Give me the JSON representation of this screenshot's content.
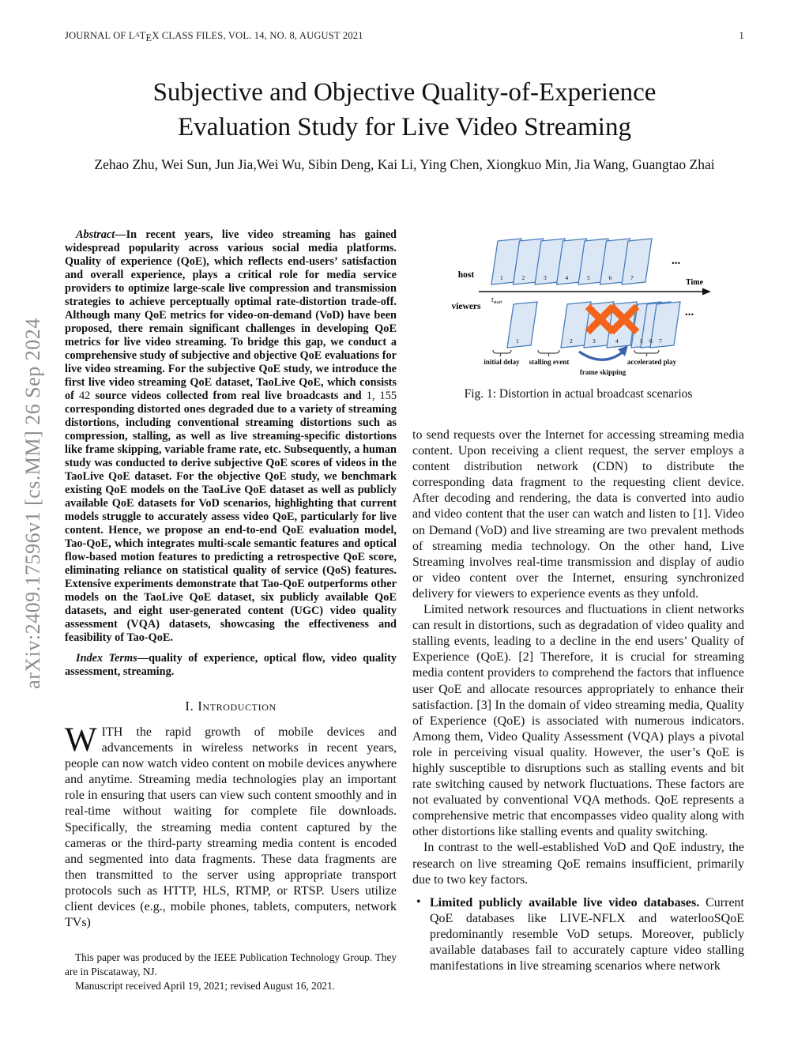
{
  "header": {
    "journal_rich": [
      {
        "t": "JOURNAL OF L"
      },
      {
        "t": "A",
        "c": "latex-a"
      },
      {
        "t": "T"
      },
      {
        "t": "E",
        "c": "latex-e"
      },
      {
        "t": "X CLASS FILES, VOL. 14, NO. 8, AUGUST 2021"
      }
    ],
    "page_number": "1"
  },
  "arxiv_watermark": "arXiv:2409.17596v1  [cs.MM]  26 Sep 2024",
  "title_line1": "Subjective and Objective Quality-of-Experience",
  "title_line2": "Evaluation Study for Live Video Streaming",
  "authors": "Zehao Zhu, Wei Sun, Jun Jia,Wei Wu, Sibin Deng, Kai Li, Ying Chen, Xiongkuo Min, Jia Wang, Guangtao Zhai",
  "abstract_rich": [
    {
      "t": "Abstract",
      "c": "it"
    },
    {
      "t": "—In recent years, live video streaming has gained widespread popularity across various social media platforms. Quality of experience (QoE), which reflects end-users’ satisfaction and overall experience, plays a critical role for media service providers to optimize large-scale live compression and transmission strategies to achieve perceptually optimal rate-distortion trade-off. Although many QoE metrics for video-on-demand (VoD) have been proposed, there remain significant challenges in developing QoE metrics for live video streaming. To bridge this gap, we conduct a comprehensive study of subjective and objective QoE evaluations for live video streaming. For the subjective QoE study, we introduce the first live video streaming QoE dataset, TaoLive QoE, which consists of "
    },
    {
      "t": "42",
      "c": "num"
    },
    {
      "t": " source videos collected from real live broadcasts and "
    },
    {
      "t": "1, 155",
      "c": "num"
    },
    {
      "t": " corresponding distorted ones degraded due to a variety of streaming distortions, including conventional streaming distortions such as compression, stalling, as well as live streaming-specific distortions like frame skipping, variable frame rate, etc. Subsequently, a human study was conducted to derive subjective QoE scores of videos in the TaoLive QoE dataset. For the objective QoE study, we benchmark existing QoE models on the TaoLive QoE dataset as well as publicly available QoE datasets for VoD scenarios, highlighting that current models struggle to accurately assess video QoE, particularly for live content. Hence, we propose an end-to-end QoE evaluation model, Tao-QoE, which integrates multi-scale semantic features and optical flow-based motion features to predicting a retrospective QoE score, eliminating reliance on statistical quality of service (QoS) features. Extensive experiments demonstrate that Tao-QoE outperforms other models on the TaoLive QoE dataset, six publicly available QoE datasets, and eight user-generated content (UGC) video quality assessment (VQA) datasets, showcasing the effectiveness and feasibility of Tao-QoE."
    }
  ],
  "index_terms_rich": [
    {
      "t": "Index Terms",
      "c": "it"
    },
    {
      "t": "—quality of experience, optical flow, video quality assessment, streaming."
    }
  ],
  "section1": {
    "heading": "I. Introduction",
    "intro_rich": [
      {
        "t": "W",
        "c": "dropcap"
      },
      {
        "t": "ITH the rapid growth of mobile devices and advancements in wireless networks in recent years, people can now watch video content on mobile devices anywhere and anytime. Streaming media technologies play an important role in ensuring that users can view such content smoothly and in real-time without waiting for complete file downloads. Specifically, the streaming media content captured by the cameras or the third-party streaming media content is encoded and segmented into data fragments. These data fragments are then transmitted to the server using appropriate transport protocols such as HTTP, HLS, RTMP, or RTSP. Users utilize client devices (e.g., mobile phones, tablets, computers, network TVs)"
      }
    ]
  },
  "footnotes": {
    "f1": "This paper was produced by the IEEE Publication Technology Group. They are in Piscataway, NJ.",
    "f2": "Manuscript received April 19, 2021; revised August 16, 2021."
  },
  "figure1": {
    "caption": "Fig. 1: Distortion in actual broadcast scenarios",
    "host_label": "host",
    "viewers_label": "viewers",
    "time_label": "Time",
    "t_start_base": "t",
    "t_start_sub": "start",
    "host_frames": [
      "1",
      "2",
      "3",
      "4",
      "5",
      "6",
      "7"
    ],
    "viewer_frames": [
      "1",
      "2",
      "3",
      "4",
      "5",
      "6",
      "7"
    ],
    "host_ellipsis": "...",
    "viewer_ellipsis": "...",
    "labels": {
      "initial_delay": "initial delay",
      "stalling_event": "stalling event",
      "frame_skipping": "frame skipping",
      "accelerated_play": "accelerated play"
    },
    "colors": {
      "frame_fill": "#dce7f5",
      "frame_stroke": "#4a7ebb",
      "x_mark": "#f2641c",
      "skip_arrow": "#3a62ae",
      "axis": "#111111",
      "brace": "#444444"
    }
  },
  "right_column": {
    "p1": "to send requests over the Internet for accessing streaming media content. Upon receiving a client request, the server employs a content distribution network (CDN) to distribute the corresponding data fragment to the requesting client device. After decoding and rendering, the data is converted into audio and video content that the user can watch and listen to [1]. Video on Demand (VoD) and live streaming are two prevalent methods of streaming media technology. On the other hand, Live Streaming involves real-time transmission and display of audio or video content over the Internet, ensuring synchronized delivery for viewers to experience events as they unfold.",
    "p2": "Limited network resources and fluctuations in client networks can result in distortions, such as degradation of video quality and stalling events, leading to a decline in the end users’ Quality of Experience (QoE). [2] Therefore, it is crucial for streaming media content providers to comprehend the factors that influence user QoE and allocate resources appropriately to enhance their satisfaction. [3] In the domain of video streaming media, Quality of Experience (QoE) is associated with numerous indicators. Among them, Video Quality Assessment (VQA) plays a pivotal role in perceiving visual quality. However, the user’s QoE is highly susceptible to disruptions such as stalling events and bit rate switching caused by network fluctuations. These factors are not evaluated by conventional VQA methods. QoE represents a comprehensive metric that encompasses video quality along with other distortions like stalling events and quality switching.",
    "p3": "In contrast to the well-established VoD and QoE industry, the research on live streaming QoE remains insufficient, primarily due to two key factors.",
    "bullet_marker": "•",
    "bullet_rich": [
      {
        "t": "Limited publicly available live video databases.",
        "c": "b"
      },
      {
        "t": " Current QoE databases like LIVE-NFLX and waterlooSQoE predominantly resemble VoD setups. Moreover, publicly available databases fail to accurately capture video stalling manifestations in live streaming scenarios where network"
      }
    ]
  }
}
